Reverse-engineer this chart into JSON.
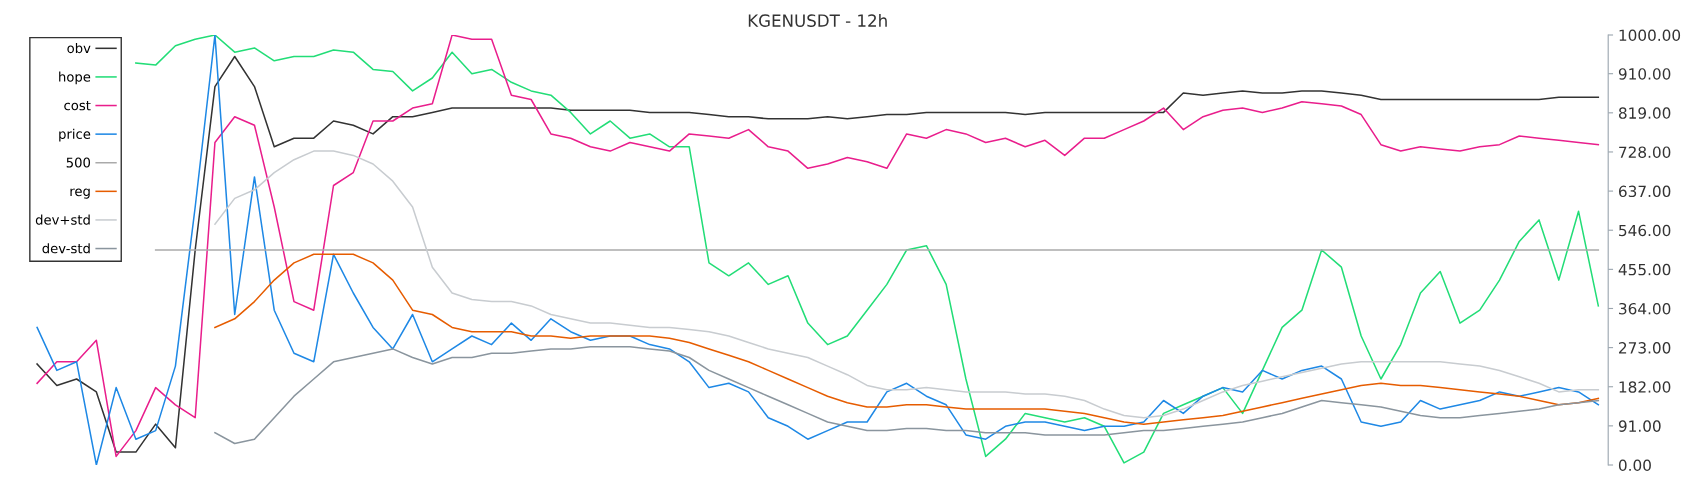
{
  "chart_data": {
    "type": "line",
    "title": "KGENUSDT - 12h",
    "categories": [
      null,
      null,
      null,
      null,
      null,
      null,
      null,
      null,
      null,
      null,
      null,
      null,
      null,
      null,
      null,
      null,
      null,
      null,
      null,
      null,
      null,
      null,
      null,
      null,
      null,
      null,
      null,
      null,
      null,
      null,
      null,
      null,
      null,
      null,
      null,
      null,
      null,
      null,
      null,
      null,
      null,
      null,
      null,
      null,
      null,
      null,
      null,
      null,
      null,
      null,
      null,
      null,
      null,
      null,
      null,
      null,
      null,
      null,
      null,
      null,
      null,
      null,
      null,
      null,
      null,
      null,
      null,
      null,
      null,
      null,
      null,
      null,
      null,
      null,
      null,
      null,
      null,
      null,
      null,
      null
    ],
    "series": [
      {
        "name": "obv",
        "color": "#333333",
        "values": [
          235,
          185,
          200,
          170,
          30,
          30,
          95,
          40,
          500,
          880,
          950,
          880,
          740,
          760,
          760,
          800,
          790,
          770,
          810,
          810,
          820,
          830,
          830,
          830,
          830,
          830,
          830,
          825,
          825,
          825,
          825,
          820,
          820,
          820,
          815,
          810,
          810,
          805,
          805,
          805,
          810,
          805,
          810,
          815,
          815,
          820,
          820,
          820,
          820,
          820,
          815,
          820,
          820,
          820,
          820,
          820,
          820,
          820,
          865,
          860,
          865,
          870,
          865,
          865,
          870,
          870,
          865,
          860,
          850,
          850,
          850,
          850,
          850,
          850,
          850,
          850,
          850,
          855,
          855,
          855
        ]
      },
      {
        "name": "hope",
        "color": "#22dd77",
        "values": [
          null,
          null,
          null,
          null,
          null,
          935,
          930,
          975,
          990,
          1000,
          960,
          970,
          940,
          950,
          950,
          965,
          960,
          920,
          915,
          870,
          900,
          960,
          910,
          920,
          890,
          870,
          860,
          820,
          770,
          800,
          760,
          770,
          740,
          740,
          470,
          440,
          470,
          420,
          440,
          330,
          280,
          300,
          360,
          420,
          500,
          510,
          420,
          200,
          20,
          60,
          120,
          110,
          100,
          110,
          90,
          5,
          30,
          120,
          140,
          160,
          180,
          120,
          220,
          320,
          360,
          500,
          460,
          300,
          200,
          280,
          400,
          450,
          330,
          360,
          430,
          520,
          570,
          430,
          590,
          370
        ]
      },
      {
        "name": "cost",
        "color": "#e91e8c",
        "values": [
          190,
          240,
          240,
          290,
          20,
          80,
          180,
          140,
          110,
          750,
          810,
          790,
          600,
          380,
          360,
          650,
          680,
          800,
          800,
          830,
          840,
          1000,
          990,
          990,
          860,
          850,
          770,
          760,
          740,
          730,
          750,
          740,
          730,
          770,
          765,
          760,
          780,
          740,
          730,
          690,
          700,
          715,
          705,
          690,
          770,
          760,
          780,
          770,
          750,
          760,
          740,
          755,
          720,
          760,
          760,
          780,
          800,
          830,
          780,
          810,
          825,
          830,
          820,
          830,
          845,
          840,
          835,
          815,
          745,
          730,
          740,
          735,
          730,
          740,
          745,
          765,
          760,
          755,
          750,
          745
        ]
      },
      {
        "name": "price",
        "color": "#1e88e5",
        "values": [
          320,
          220,
          240,
          0,
          180,
          60,
          80,
          230,
          600,
          1000,
          350,
          670,
          360,
          260,
          240,
          490,
          400,
          320,
          270,
          350,
          240,
          270,
          300,
          280,
          330,
          290,
          340,
          310,
          290,
          300,
          300,
          280,
          270,
          240,
          180,
          190,
          170,
          110,
          90,
          60,
          80,
          100,
          100,
          170,
          190,
          160,
          140,
          70,
          60,
          90,
          100,
          100,
          90,
          80,
          90,
          90,
          100,
          150,
          120,
          160,
          180,
          170,
          220,
          200,
          220,
          230,
          200,
          100,
          90,
          100,
          150,
          130,
          140,
          150,
          170,
          160,
          170,
          180,
          170,
          140
        ]
      },
      {
        "name": "500",
        "color": "#aaaaaa",
        "values": [
          null,
          null,
          null,
          null,
          null,
          null,
          500,
          500,
          500,
          500,
          500,
          500,
          500,
          500,
          500,
          500,
          500,
          500,
          500,
          500,
          500,
          500,
          500,
          500,
          500,
          500,
          500,
          500,
          500,
          500,
          500,
          500,
          500,
          500,
          500,
          500,
          500,
          500,
          500,
          500,
          500,
          500,
          500,
          500,
          500,
          500,
          500,
          500,
          500,
          500,
          500,
          500,
          500,
          500,
          500,
          500,
          500,
          500,
          500,
          500,
          500,
          500,
          500,
          500,
          500,
          500,
          500,
          500,
          500,
          500,
          500,
          500,
          500,
          500,
          500,
          500,
          500,
          500,
          500,
          500
        ]
      },
      {
        "name": "reg",
        "color": "#e65c00",
        "values": [
          null,
          null,
          null,
          null,
          null,
          null,
          null,
          null,
          null,
          320,
          340,
          380,
          430,
          470,
          490,
          490,
          490,
          470,
          430,
          360,
          350,
          320,
          310,
          310,
          310,
          300,
          300,
          295,
          300,
          300,
          300,
          300,
          295,
          285,
          270,
          255,
          240,
          220,
          200,
          180,
          160,
          145,
          135,
          135,
          140,
          140,
          135,
          130,
          130,
          130,
          130,
          130,
          125,
          120,
          110,
          100,
          95,
          100,
          105,
          110,
          115,
          125,
          135,
          145,
          155,
          165,
          175,
          185,
          190,
          185,
          185,
          180,
          175,
          170,
          165,
          160,
          150,
          140,
          145,
          155
        ]
      },
      {
        "name": "dev+std",
        "color": "#c8ccd0",
        "values": [
          null,
          null,
          null,
          null,
          null,
          null,
          null,
          null,
          null,
          560,
          620,
          640,
          680,
          710,
          730,
          730,
          720,
          700,
          660,
          600,
          460,
          400,
          385,
          380,
          380,
          370,
          350,
          340,
          330,
          330,
          325,
          320,
          320,
          315,
          310,
          300,
          285,
          270,
          260,
          250,
          230,
          210,
          185,
          175,
          175,
          180,
          175,
          170,
          170,
          170,
          165,
          165,
          160,
          150,
          130,
          115,
          110,
          115,
          130,
          150,
          170,
          185,
          195,
          205,
          215,
          225,
          235,
          240,
          240,
          240,
          240,
          240,
          235,
          230,
          220,
          205,
          190,
          170,
          175,
          175
        ]
      },
      {
        "name": "dev-std",
        "color": "#8a959e",
        "values": [
          null,
          null,
          null,
          null,
          null,
          null,
          null,
          null,
          null,
          75,
          50,
          60,
          110,
          160,
          200,
          240,
          250,
          260,
          270,
          250,
          235,
          250,
          250,
          260,
          260,
          265,
          270,
          270,
          275,
          275,
          275,
          270,
          265,
          250,
          220,
          200,
          180,
          160,
          140,
          120,
          100,
          90,
          80,
          80,
          85,
          85,
          80,
          80,
          75,
          75,
          75,
          70,
          70,
          70,
          70,
          75,
          80,
          80,
          85,
          90,
          95,
          100,
          110,
          120,
          135,
          150,
          145,
          140,
          135,
          125,
          115,
          110,
          110,
          115,
          120,
          125,
          130,
          140,
          145,
          150
        ]
      }
    ],
    "ylim": [
      0,
      1000
    ],
    "yticks": [
      {
        "value": 0,
        "label": "0.00"
      },
      {
        "value": 91,
        "label": "91.00"
      },
      {
        "value": 182,
        "label": "182.00"
      },
      {
        "value": 273,
        "label": "273.00"
      },
      {
        "value": 364,
        "label": "364.00"
      },
      {
        "value": 455,
        "label": "455.00"
      },
      {
        "value": 546,
        "label": "546.00"
      },
      {
        "value": 637,
        "label": "637.00"
      },
      {
        "value": 728,
        "label": "728.00"
      },
      {
        "value": 819,
        "label": "819.00"
      },
      {
        "value": 910,
        "label": "910.00"
      },
      {
        "value": 1000,
        "label": "1000.00"
      }
    ],
    "tick_labels": "y",
    "grid": false,
    "legend": "top left",
    "marker": "none",
    "line_style": "solid"
  }
}
